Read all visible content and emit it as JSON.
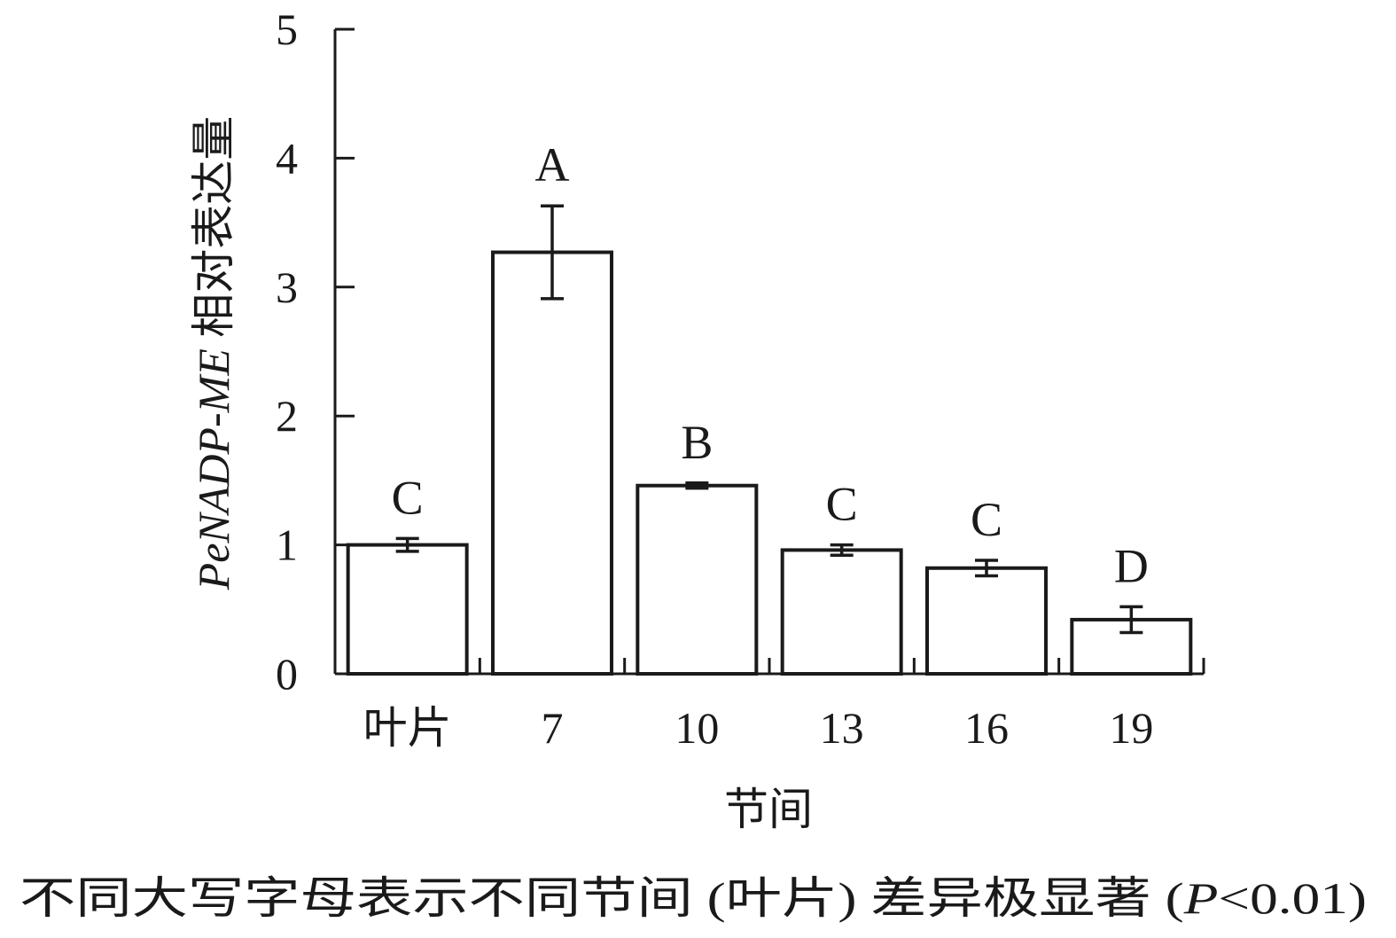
{
  "chart_data": {
    "type": "bar",
    "categories": [
      "叶片",
      "7",
      "10",
      "13",
      "16",
      "19"
    ],
    "values": [
      1.0,
      3.27,
      1.46,
      0.96,
      0.82,
      0.42
    ],
    "errors": [
      0.05,
      0.36,
      0.02,
      0.04,
      0.06,
      0.1
    ],
    "significance": [
      "C",
      "A",
      "B",
      "C",
      "C",
      "D"
    ],
    "ylim": [
      0,
      5
    ],
    "yticks": [
      "0",
      "1",
      "2",
      "3",
      "4",
      "5"
    ],
    "xlabel": "节间",
    "ylabel_italic": "PeNADP-ME",
    "ylabel_rest": " 相对表达量",
    "grid": false
  },
  "caption": {
    "main": "不同大写字母表示不同节间 (叶片) 差异极显著 (",
    "p_symbol": "P",
    "rest": "<0.01)"
  }
}
